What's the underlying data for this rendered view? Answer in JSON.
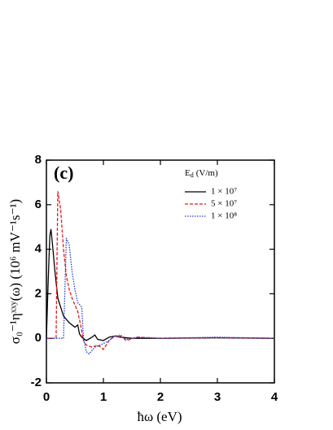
{
  "chart_data": {
    "type": "line",
    "annotation": "(c)",
    "xlabel": "ħω (eV)",
    "ylabel": "σ₀⁻¹ηˣˣʸ(ω) (10⁶ mV⁻¹s⁻¹)",
    "legend_title": "E",
    "legend_title_subscript": "d",
    "legend_title_unit": "(V/m)",
    "xlim": [
      0,
      4
    ],
    "xticks": [
      0,
      1,
      2,
      3,
      4
    ],
    "ylim": [
      -2,
      8
    ],
    "yticks": [
      -2,
      0,
      2,
      4,
      6,
      8
    ],
    "legend": "upper right",
    "series": [
      {
        "name": "1 × 10⁷",
        "color": "#000000",
        "dash": "",
        "x": [
          0,
          0.03,
          0.06,
          0.08,
          0.1,
          0.15,
          0.2,
          0.3,
          0.4,
          0.5,
          0.55,
          0.58,
          0.62,
          0.7,
          0.8,
          0.85,
          0.9,
          1.0,
          1.1,
          1.2,
          1.3,
          1.5,
          2,
          3,
          4
        ],
        "values": [
          0,
          2.5,
          4.6,
          4.9,
          4.4,
          3.0,
          1.8,
          1.0,
          0.7,
          0.5,
          0.6,
          0.2,
          0.05,
          -0.1,
          0.05,
          0.15,
          -0.05,
          -0.1,
          0.05,
          0.1,
          0.05,
          0,
          0,
          0.02,
          0
        ]
      },
      {
        "name": "5 × 10⁷",
        "color": "#e41a1c",
        "dash": "4,2",
        "x": [
          0,
          0.17,
          0.2,
          0.25,
          0.3,
          0.35,
          0.4,
          0.45,
          0.5,
          0.55,
          0.6,
          0.65,
          0.7,
          0.8,
          0.9,
          1.0,
          1.1,
          1.2,
          1.3,
          1.4,
          1.6,
          2,
          3,
          4
        ],
        "values": [
          0,
          0,
          6.6,
          5.8,
          4.0,
          2.8,
          2.2,
          1.8,
          1.5,
          1.2,
          0.6,
          -0.1,
          -0.3,
          -0.4,
          -0.3,
          -0.5,
          -0.1,
          0.1,
          0.1,
          -0.1,
          0.05,
          0,
          0.03,
          0
        ]
      },
      {
        "name": "1 × 10⁸",
        "color": "#1f3fd6",
        "dash": "1.5,1.5",
        "x": [
          0,
          0.3,
          0.35,
          0.4,
          0.45,
          0.5,
          0.55,
          0.62,
          0.65,
          0.7,
          0.75,
          0.85,
          0.95,
          1.1,
          1.2,
          1.3,
          1.4,
          1.6,
          2,
          3,
          4
        ],
        "values": [
          0,
          0,
          4.5,
          4.2,
          3.0,
          2.2,
          1.6,
          1.4,
          0.0,
          -0.6,
          -0.7,
          -0.4,
          -0.3,
          -0.1,
          0.1,
          0.15,
          -0.05,
          0.05,
          0,
          0.05,
          0
        ]
      }
    ]
  }
}
